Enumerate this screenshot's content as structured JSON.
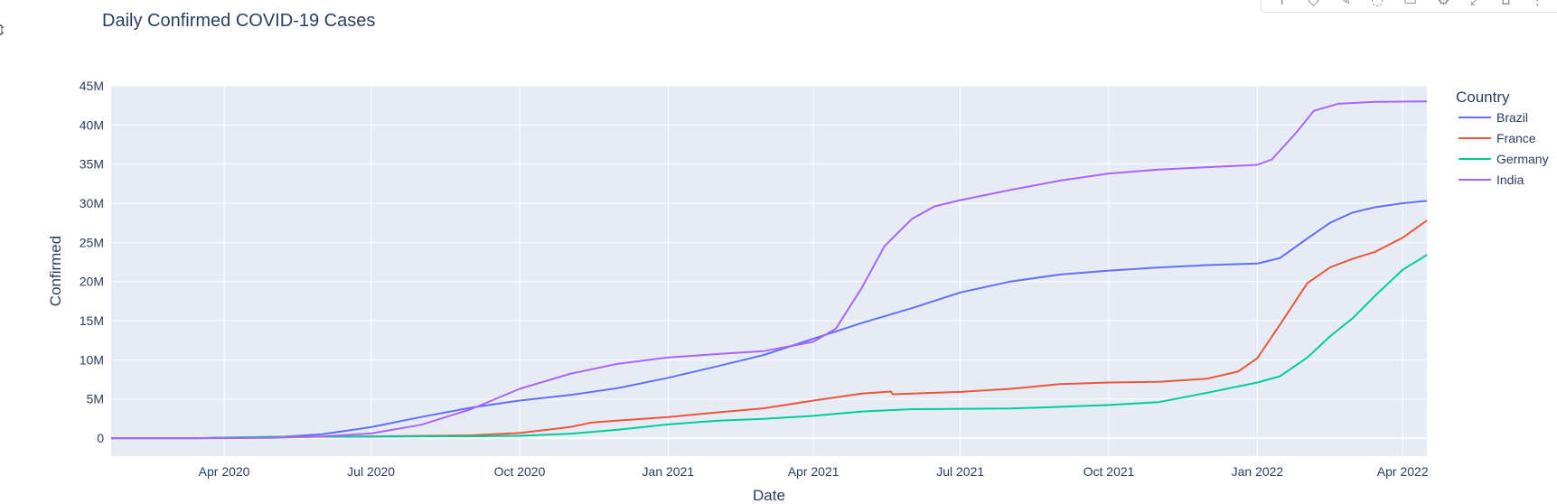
{
  "toolbar": {
    "icons": [
      "camera-icon",
      "zoom-icon",
      "pan-icon",
      "lasso-select-icon",
      "box-select-icon",
      "settings-icon",
      "autoscale-icon",
      "reset-icon",
      "more-icon"
    ]
  },
  "chart_data": {
    "type": "line",
    "title": "Daily Confirmed COVID-19 Cases",
    "xlabel": "Date",
    "ylabel": "Confirmed",
    "legend_title": "Country",
    "legend_position": "right",
    "grid": true,
    "colors": {
      "plot_bg": "#e5ecf6",
      "grid": "#ffffff",
      "text": "#2a3f5f"
    },
    "xlim": [
      "2020-01-22",
      "2022-04-16"
    ],
    "ylim": [
      -2300000,
      45000000
    ],
    "x_ticks": [
      {
        "date": "2020-04-01",
        "label": "Apr 2020"
      },
      {
        "date": "2020-07-01",
        "label": "Jul 2020"
      },
      {
        "date": "2020-10-01",
        "label": "Oct 2020"
      },
      {
        "date": "2021-01-01",
        "label": "Jan 2021"
      },
      {
        "date": "2021-04-01",
        "label": "Apr 2021"
      },
      {
        "date": "2021-07-01",
        "label": "Jul 2021"
      },
      {
        "date": "2021-10-01",
        "label": "Oct 2021"
      },
      {
        "date": "2022-01-01",
        "label": "Jan 2022"
      },
      {
        "date": "2022-04-01",
        "label": "Apr 2022"
      }
    ],
    "y_ticks": [
      {
        "value": 0,
        "label": "0"
      },
      {
        "value": 5000000,
        "label": "5M"
      },
      {
        "value": 10000000,
        "label": "10M"
      },
      {
        "value": 15000000,
        "label": "15M"
      },
      {
        "value": 20000000,
        "label": "20M"
      },
      {
        "value": 25000000,
        "label": "25M"
      },
      {
        "value": 30000000,
        "label": "30M"
      },
      {
        "value": 35000000,
        "label": "35M"
      },
      {
        "value": 40000000,
        "label": "40M"
      },
      {
        "value": 45000000,
        "label": "45M"
      }
    ],
    "series": [
      {
        "name": "Brazil",
        "color": "#636efa",
        "points": [
          [
            "2020-01-22",
            0
          ],
          [
            "2020-03-15",
            0
          ],
          [
            "2020-05-01",
            90000
          ],
          [
            "2020-06-01",
            500000
          ],
          [
            "2020-07-01",
            1400000
          ],
          [
            "2020-08-01",
            2700000
          ],
          [
            "2020-09-01",
            3900000
          ],
          [
            "2020-10-01",
            4800000
          ],
          [
            "2020-11-01",
            5500000
          ],
          [
            "2020-12-01",
            6400000
          ],
          [
            "2021-01-01",
            7700000
          ],
          [
            "2021-02-01",
            9200000
          ],
          [
            "2021-03-01",
            10600000
          ],
          [
            "2021-04-01",
            12700000
          ],
          [
            "2021-05-01",
            14700000
          ],
          [
            "2021-06-01",
            16600000
          ],
          [
            "2021-07-01",
            18600000
          ],
          [
            "2021-08-01",
            20000000
          ],
          [
            "2021-09-01",
            20900000
          ],
          [
            "2021-10-01",
            21400000
          ],
          [
            "2021-11-01",
            21800000
          ],
          [
            "2021-12-01",
            22100000
          ],
          [
            "2022-01-01",
            22300000
          ],
          [
            "2022-01-15",
            23000000
          ],
          [
            "2022-02-01",
            25500000
          ],
          [
            "2022-02-15",
            27500000
          ],
          [
            "2022-03-01",
            28800000
          ],
          [
            "2022-03-15",
            29500000
          ],
          [
            "2022-04-01",
            30000000
          ],
          [
            "2022-04-16",
            30300000
          ]
        ]
      },
      {
        "name": "France",
        "color": "#ef553b",
        "points": [
          [
            "2020-01-22",
            0
          ],
          [
            "2020-03-15",
            0
          ],
          [
            "2020-05-01",
            170000
          ],
          [
            "2020-07-01",
            200000
          ],
          [
            "2020-09-01",
            350000
          ],
          [
            "2020-10-01",
            650000
          ],
          [
            "2020-11-01",
            1400000
          ],
          [
            "2020-11-15",
            2000000
          ],
          [
            "2020-12-01",
            2250000
          ],
          [
            "2021-01-01",
            2700000
          ],
          [
            "2021-02-01",
            3300000
          ],
          [
            "2021-03-01",
            3800000
          ],
          [
            "2021-04-01",
            4800000
          ],
          [
            "2021-05-01",
            5700000
          ],
          [
            "2021-05-19",
            5950000
          ],
          [
            "2021-05-20",
            5600000
          ],
          [
            "2021-07-01",
            5900000
          ],
          [
            "2021-08-01",
            6300000
          ],
          [
            "2021-09-01",
            6900000
          ],
          [
            "2021-10-01",
            7100000
          ],
          [
            "2021-11-01",
            7200000
          ],
          [
            "2021-12-01",
            7600000
          ],
          [
            "2021-12-20",
            8500000
          ],
          [
            "2022-01-01",
            10200000
          ],
          [
            "2022-01-15",
            14500000
          ],
          [
            "2022-02-01",
            19800000
          ],
          [
            "2022-02-15",
            21800000
          ],
          [
            "2022-03-01",
            22900000
          ],
          [
            "2022-03-15",
            23800000
          ],
          [
            "2022-04-01",
            25600000
          ],
          [
            "2022-04-16",
            27800000
          ]
        ]
      },
      {
        "name": "Germany",
        "color": "#00cc96",
        "points": [
          [
            "2020-01-22",
            0
          ],
          [
            "2020-03-15",
            0
          ],
          [
            "2020-04-01",
            70000
          ],
          [
            "2020-05-01",
            160000
          ],
          [
            "2020-07-01",
            195000
          ],
          [
            "2020-09-01",
            240000
          ],
          [
            "2020-10-01",
            300000
          ],
          [
            "2020-11-01",
            550000
          ],
          [
            "2020-12-01",
            1080000
          ],
          [
            "2021-01-01",
            1750000
          ],
          [
            "2021-02-01",
            2230000
          ],
          [
            "2021-03-01",
            2450000
          ],
          [
            "2021-04-01",
            2850000
          ],
          [
            "2021-05-01",
            3400000
          ],
          [
            "2021-06-01",
            3700000
          ],
          [
            "2021-07-01",
            3740000
          ],
          [
            "2021-08-01",
            3780000
          ],
          [
            "2021-09-01",
            4000000
          ],
          [
            "2021-10-01",
            4230000
          ],
          [
            "2021-11-01",
            4600000
          ],
          [
            "2021-12-01",
            5800000
          ],
          [
            "2022-01-01",
            7100000
          ],
          [
            "2022-01-15",
            7900000
          ],
          [
            "2022-02-01",
            10300000
          ],
          [
            "2022-02-15",
            13000000
          ],
          [
            "2022-03-01",
            15300000
          ],
          [
            "2022-03-15",
            18200000
          ],
          [
            "2022-04-01",
            21500000
          ],
          [
            "2022-04-16",
            23400000
          ]
        ]
      },
      {
        "name": "India",
        "color": "#ab63fa",
        "points": [
          [
            "2020-01-22",
            0
          ],
          [
            "2020-04-01",
            0
          ],
          [
            "2020-05-01",
            40000
          ],
          [
            "2020-06-01",
            200000
          ],
          [
            "2020-07-01",
            600000
          ],
          [
            "2020-08-01",
            1700000
          ],
          [
            "2020-09-01",
            3700000
          ],
          [
            "2020-10-01",
            6300000
          ],
          [
            "2020-11-01",
            8200000
          ],
          [
            "2020-12-01",
            9500000
          ],
          [
            "2021-01-01",
            10300000
          ],
          [
            "2021-02-01",
            10750000
          ],
          [
            "2021-03-01",
            11100000
          ],
          [
            "2021-04-01",
            12300000
          ],
          [
            "2021-04-15",
            14000000
          ],
          [
            "2021-05-01",
            19200000
          ],
          [
            "2021-05-15",
            24500000
          ],
          [
            "2021-06-01",
            28000000
          ],
          [
            "2021-06-15",
            29600000
          ],
          [
            "2021-07-01",
            30400000
          ],
          [
            "2021-08-01",
            31700000
          ],
          [
            "2021-09-01",
            32900000
          ],
          [
            "2021-10-01",
            33800000
          ],
          [
            "2021-11-01",
            34300000
          ],
          [
            "2021-12-01",
            34600000
          ],
          [
            "2022-01-01",
            34900000
          ],
          [
            "2022-01-10",
            35600000
          ],
          [
            "2022-01-25",
            39000000
          ],
          [
            "2022-02-05",
            41800000
          ],
          [
            "2022-02-20",
            42700000
          ],
          [
            "2022-03-15",
            42950000
          ],
          [
            "2022-04-16",
            43000000
          ]
        ]
      }
    ]
  }
}
